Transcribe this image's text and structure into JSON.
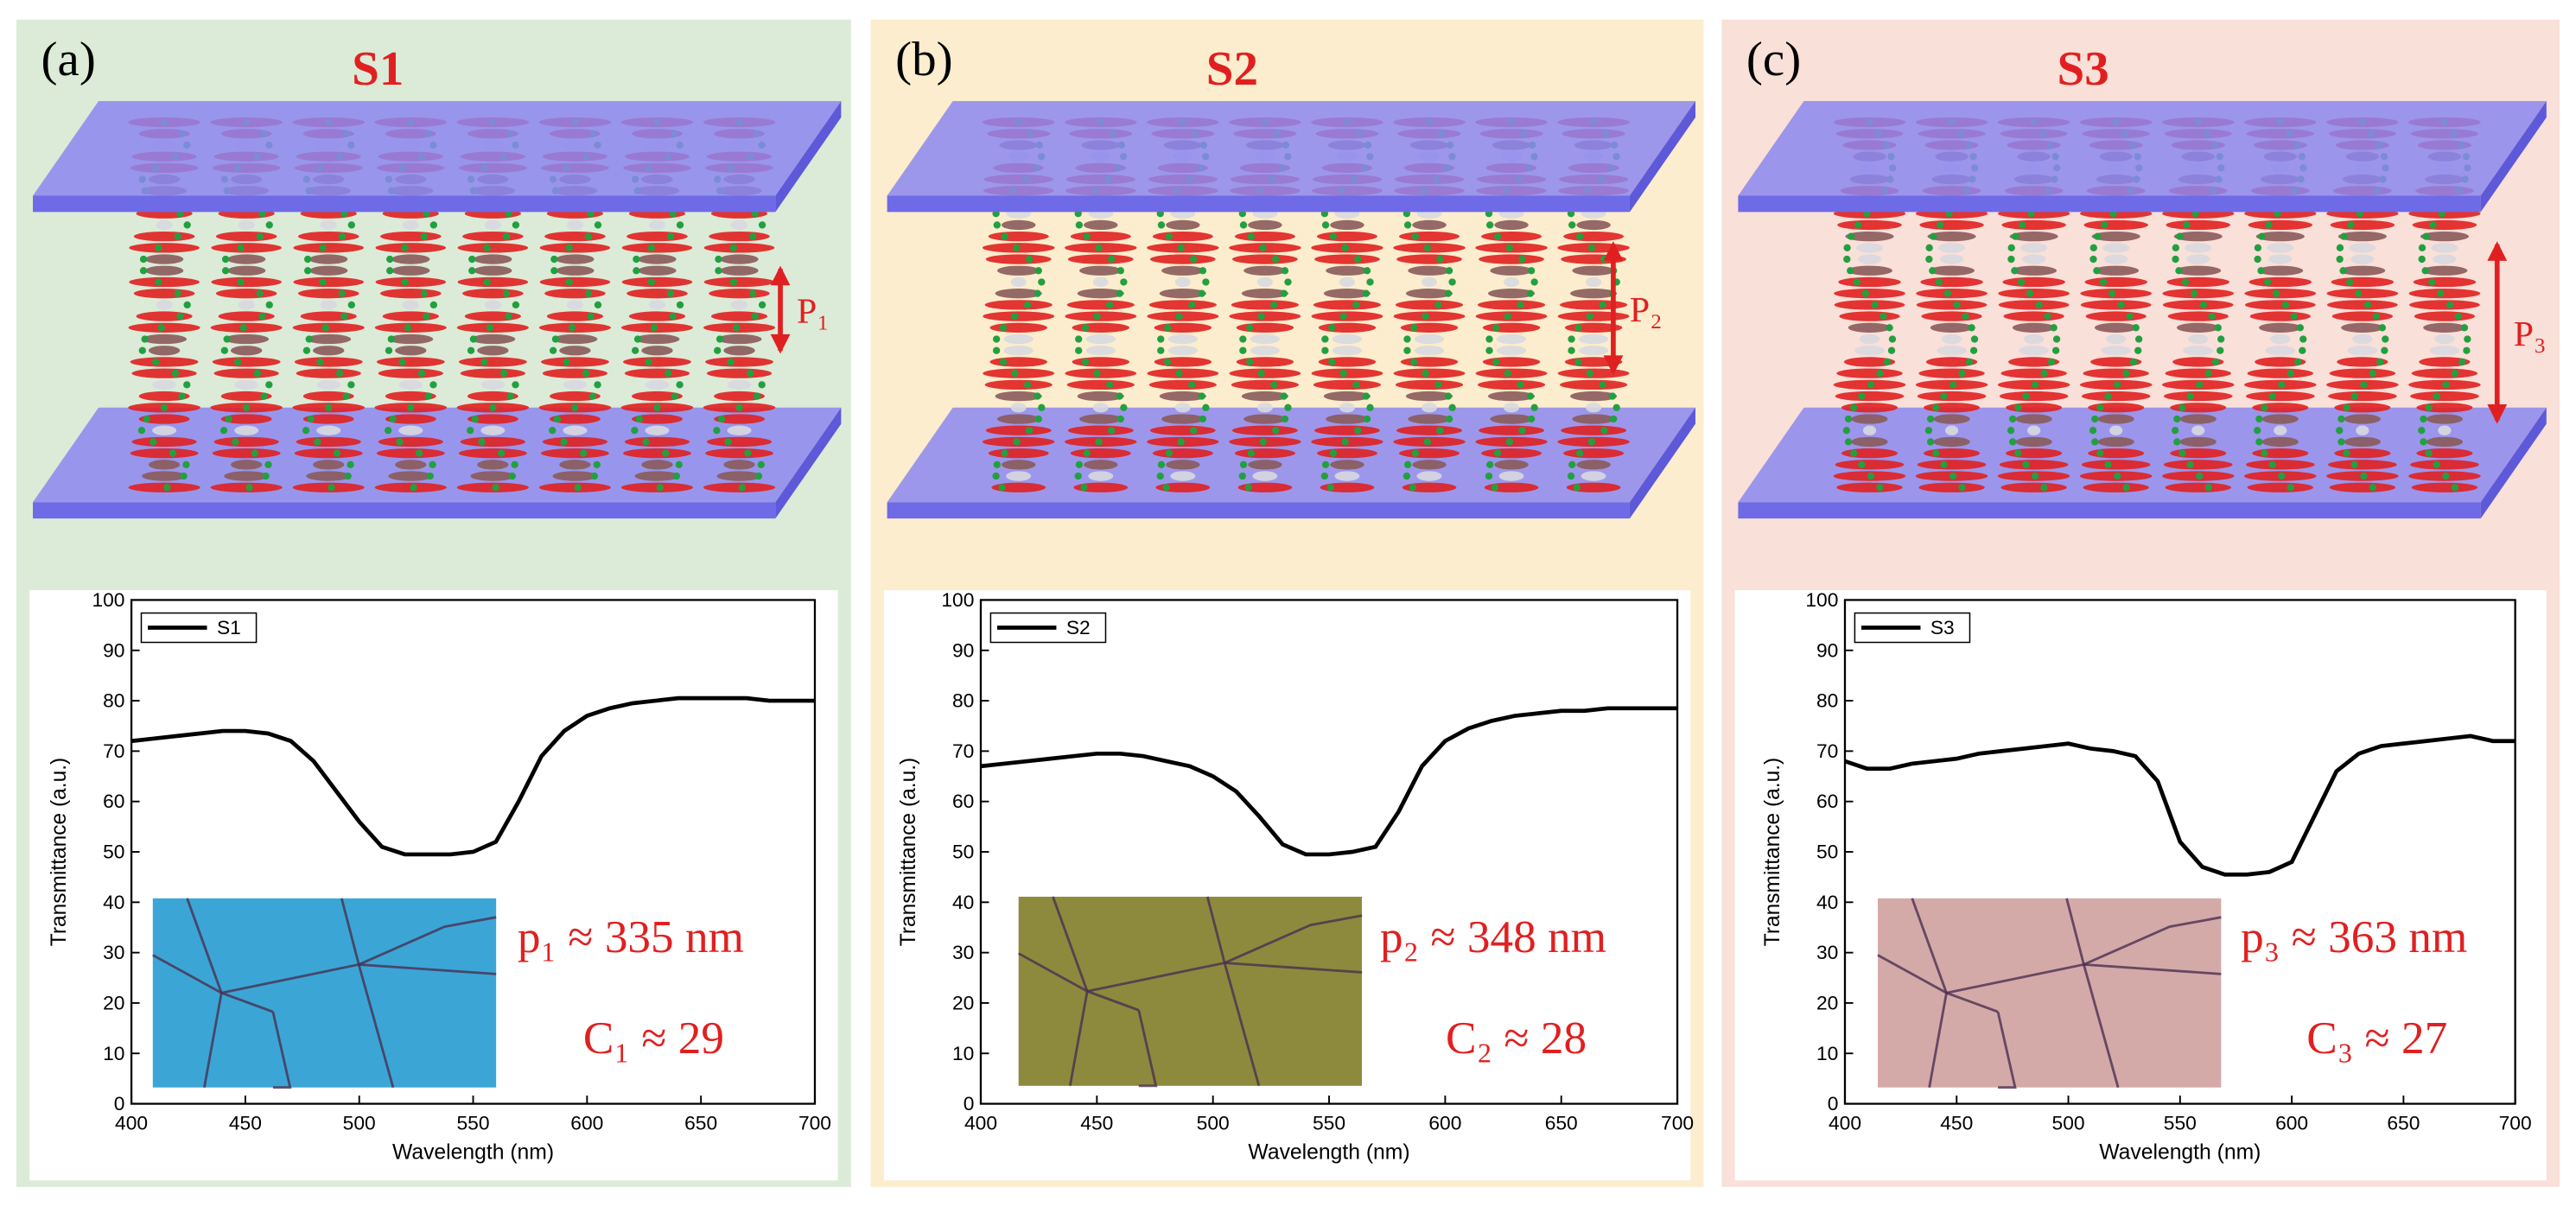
{
  "panels": [
    {
      "label": "(a)",
      "title": "S1",
      "pitch_mark": "P₁",
      "pitch_text": "p₁ ≈ 335 nm",
      "c_text": "C₁ ≈ 29"
    },
    {
      "label": "(b)",
      "title": "S2",
      "pitch_mark": "P₂",
      "pitch_text": "p₂ ≈ 348 nm",
      "c_text": "C₂ ≈ 28"
    },
    {
      "label": "(c)",
      "title": "S3",
      "pitch_mark": "P₃",
      "pitch_text": "p₃ ≈ 363 nm",
      "c_text": "C₃ ≈ 27"
    }
  ],
  "chart_data": [
    {
      "type": "line",
      "xlabel": "Wavelength (nm)",
      "ylabel": "Transmittance (a.u.)",
      "x": [
        400,
        410,
        420,
        430,
        440,
        450,
        460,
        470,
        480,
        490,
        500,
        510,
        520,
        530,
        540,
        550,
        560,
        570,
        580,
        590,
        600,
        610,
        620,
        630,
        640,
        650,
        660,
        670,
        680,
        690,
        700
      ],
      "series": [
        {
          "name": "S1",
          "color": "#000000",
          "values": [
            72,
            72.5,
            73,
            73.5,
            74,
            74,
            73.5,
            72,
            68,
            62,
            56,
            51,
            49.5,
            49.5,
            49.5,
            50,
            52,
            60,
            69,
            74,
            77,
            78.5,
            79.5,
            80,
            80.5,
            80.5,
            80.5,
            80.5,
            80,
            80,
            80
          ]
        }
      ],
      "xlim": [
        400,
        700
      ],
      "xticks": [
        400,
        450,
        500,
        550,
        600,
        650,
        700
      ],
      "ylim": [
        0,
        100
      ],
      "yticks": [
        0,
        10,
        20,
        30,
        40,
        50,
        60,
        70,
        80,
        90,
        100
      ],
      "legend": "upper left"
    },
    {
      "type": "line",
      "xlabel": "Wavelength (nm)",
      "ylabel": "Transmittance (a.u.)",
      "x": [
        400,
        410,
        420,
        430,
        440,
        450,
        460,
        470,
        480,
        490,
        500,
        510,
        520,
        530,
        540,
        550,
        560,
        570,
        580,
        590,
        600,
        610,
        620,
        630,
        640,
        650,
        660,
        670,
        680,
        690,
        700
      ],
      "series": [
        {
          "name": "S2",
          "color": "#000000",
          "values": [
            67,
            67.5,
            68,
            68.5,
            69,
            69.5,
            69.5,
            69,
            68,
            67,
            65,
            62,
            57,
            51.5,
            49.5,
            49.5,
            50,
            51,
            58,
            67,
            72,
            74.5,
            76,
            77,
            77.5,
            78,
            78,
            78.5,
            78.5,
            78.5,
            78.5
          ]
        }
      ],
      "xlim": [
        400,
        700
      ],
      "xticks": [
        400,
        450,
        500,
        550,
        600,
        650,
        700
      ],
      "ylim": [
        0,
        100
      ],
      "yticks": [
        0,
        10,
        20,
        30,
        40,
        50,
        60,
        70,
        80,
        90,
        100
      ],
      "legend": "upper left"
    },
    {
      "type": "line",
      "xlabel": "Wavelength (nm)",
      "ylabel": "Transmittance (a.u.)",
      "x": [
        400,
        410,
        420,
        430,
        440,
        450,
        460,
        470,
        480,
        490,
        500,
        510,
        520,
        530,
        540,
        550,
        560,
        570,
        580,
        590,
        600,
        610,
        620,
        630,
        640,
        650,
        660,
        670,
        680,
        690,
        700
      ],
      "series": [
        {
          "name": "S3",
          "color": "#000000",
          "values": [
            68,
            66.5,
            66.5,
            67.5,
            68,
            68.5,
            69.5,
            70,
            70.5,
            71,
            71.5,
            70.5,
            70,
            69,
            64,
            52,
            47,
            45.5,
            45.5,
            46,
            48,
            57,
            66,
            69.5,
            71,
            71.5,
            72,
            72.5,
            73,
            72,
            72
          ]
        }
      ],
      "xlim": [
        400,
        700
      ],
      "xticks": [
        400,
        450,
        500,
        550,
        600,
        650,
        700
      ],
      "ylim": [
        0,
        100
      ],
      "yticks": [
        0,
        10,
        20,
        30,
        40,
        50,
        60,
        70,
        80,
        90,
        100
      ],
      "legend": "upper left"
    }
  ]
}
